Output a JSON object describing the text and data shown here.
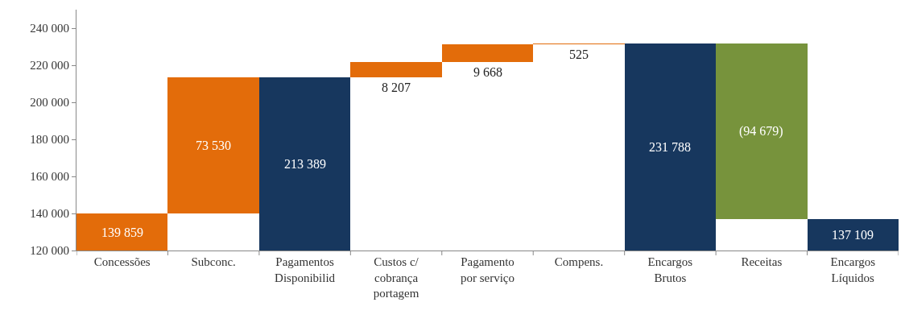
{
  "chart_data": {
    "type": "bar",
    "categories": [
      "Concessões",
      "Subconc.",
      "Pagamentos\nDisponibilid",
      "Custos c/\ncobrança\nportagem",
      "Pagamento\npor serviço",
      "Compens.",
      "Encargos\nBrutos",
      "Receitas",
      "Encargos\nLíquidos"
    ],
    "values": [
      139859,
      73530,
      213389,
      8207,
      9668,
      525,
      231788,
      -94679,
      137109
    ],
    "base": [
      0,
      139859,
      0,
      213389,
      221596,
      231264,
      0,
      231788,
      0
    ],
    "colors": [
      "#e36c0a",
      "#e36c0a",
      "#17375e",
      "#e36c0a",
      "#e36c0a",
      "#e36c0a",
      "#17375e",
      "#77933c",
      "#17375e"
    ],
    "value_labels": [
      "139 859",
      "73 530",
      "213 389",
      "8 207",
      "9 668",
      "525",
      "231 788",
      "(94 679)",
      "137 109"
    ],
    "ylim": [
      120000,
      250000
    ],
    "yticks": [
      {
        "value": 120000,
        "label": "120 000"
      },
      {
        "value": 140000,
        "label": "140 000"
      },
      {
        "value": 160000,
        "label": "160 000"
      },
      {
        "value": 180000,
        "label": "180 000"
      },
      {
        "value": 200000,
        "label": "200 000"
      },
      {
        "value": 220000,
        "label": "220 000"
      },
      {
        "value": 240000,
        "label": "240 000"
      }
    ],
    "grid": false
  }
}
